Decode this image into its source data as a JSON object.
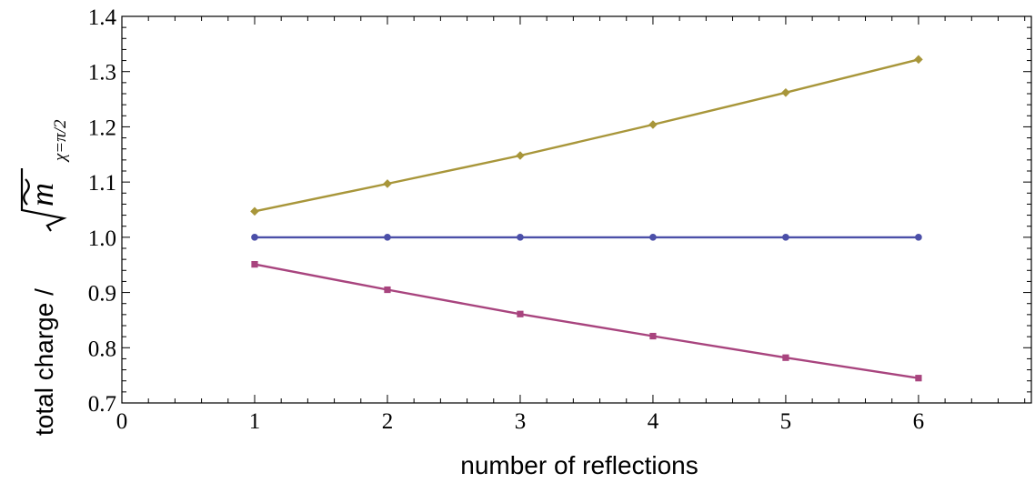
{
  "chart_data": {
    "type": "line",
    "xlabel": "number of reflections",
    "ylabel": {
      "prefix": "total charge / ",
      "symbol": "m",
      "subscript": "χ=π/2"
    },
    "xlim": [
      0,
      6.85
    ],
    "ylim": [
      0.7,
      1.4
    ],
    "x_ticks": [
      "0",
      "1",
      "2",
      "3",
      "4",
      "5",
      "6"
    ],
    "y_ticks": [
      "0.7",
      "0.8",
      "0.9",
      "1.0",
      "1.1",
      "1.2",
      "1.3",
      "1.4"
    ],
    "grid": false,
    "x": [
      1,
      2,
      3,
      4,
      5,
      6
    ],
    "series": [
      {
        "color": "#A8963A",
        "marker": "diamond",
        "values": [
          1.047,
          1.097,
          1.148,
          1.204,
          1.262,
          1.322
        ]
      },
      {
        "color": "#4B4FA8",
        "marker": "circle",
        "values": [
          1.0,
          1.0,
          1.0,
          1.0,
          1.0,
          1.0
        ]
      },
      {
        "color": "#A8447E",
        "marker": "square",
        "values": [
          0.951,
          0.905,
          0.861,
          0.821,
          0.782,
          0.745
        ]
      }
    ]
  }
}
